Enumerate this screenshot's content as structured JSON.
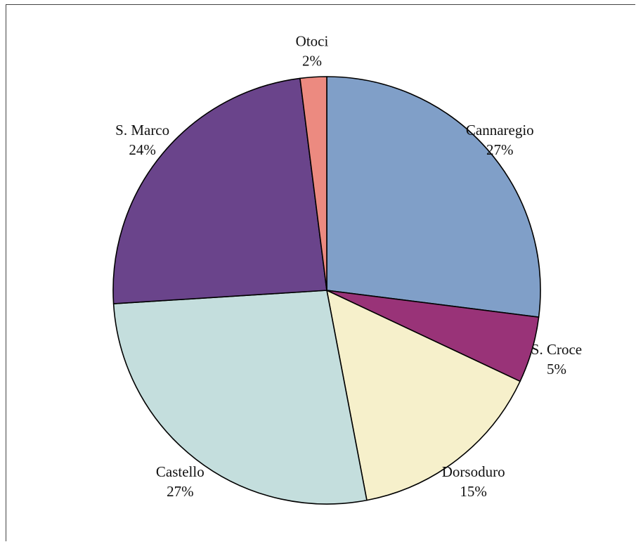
{
  "chart_data": {
    "type": "pie",
    "title": "",
    "slices": [
      {
        "label": "Cannaregio",
        "value": 27,
        "value_label": "27%",
        "color": "#809fc8"
      },
      {
        "label": "S. Croce",
        "value": 5,
        "value_label": "5%",
        "color": "#993378"
      },
      {
        "label": "Dorsoduro",
        "value": 15,
        "value_label": "15%",
        "color": "#f6f0cb"
      },
      {
        "label": "Castello",
        "value": 27,
        "value_label": "27%",
        "color": "#c4dedd"
      },
      {
        "label": "S. Marco",
        "value": 24,
        "value_label": "24%",
        "color": "#6a448b"
      },
      {
        "label": "Otoci",
        "value": 2,
        "value_label": "2%",
        "color": "#ec8a80"
      }
    ],
    "start_angle_deg": 0,
    "direction": "clockwise",
    "legend": "none"
  }
}
